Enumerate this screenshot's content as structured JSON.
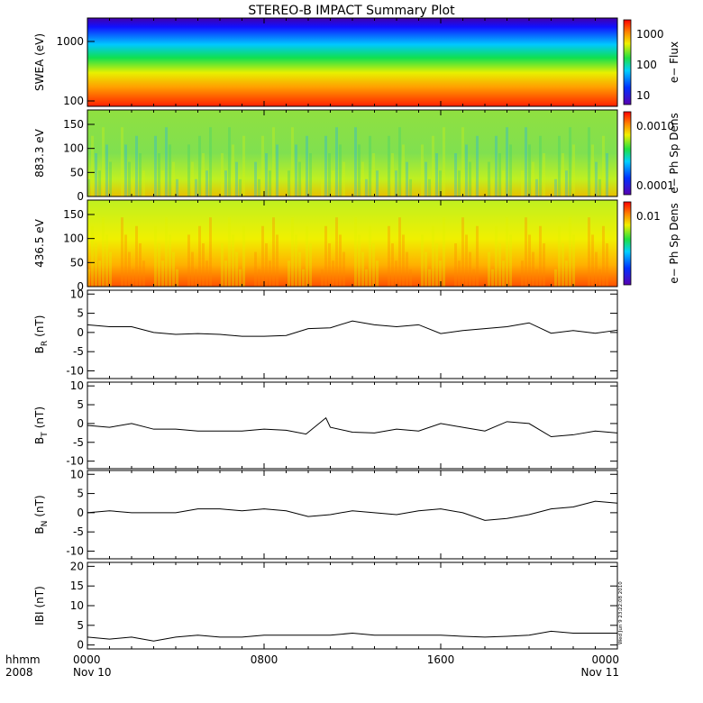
{
  "chart_data": {
    "title": "STEREO-B IMPACT Summary Plot",
    "x_axis": {
      "row1_label": "hhmm",
      "row2_label": "2008",
      "ticks": [
        {
          "hours": 0,
          "label": "0000",
          "sub": "Nov 10"
        },
        {
          "hours": 8,
          "label": "0800",
          "sub": ""
        },
        {
          "hours": 16,
          "label": "1600",
          "sub": ""
        },
        {
          "hours": 24,
          "label": "0000",
          "sub": "Nov 11"
        }
      ],
      "range_hours": [
        0,
        24
      ]
    },
    "side_stamp": "Wed Jun 9 23:22:08 2010",
    "panels": [
      {
        "type": "heatmap",
        "ylabel": "SWEA (eV)",
        "yscale": "log",
        "yticks": [
          "100",
          "1000"
        ],
        "colorbar": {
          "label": "e− Flux",
          "ticks": [
            "1000",
            "100",
            "10"
          ]
        },
        "description_values": {
          "energy_range_eV": [
            100,
            2000
          ]
        }
      },
      {
        "type": "heatmap",
        "ylabel": "883.3 eV",
        "yticks": [
          "0",
          "50",
          "100",
          "150"
        ],
        "ylim": [
          0,
          180
        ],
        "colorbar": {
          "label": "e− Ph Sp Dens",
          "ticks": [
            "0.0010",
            "0.0001"
          ]
        }
      },
      {
        "type": "heatmap",
        "ylabel": "436.5 eV",
        "yticks": [
          "0",
          "50",
          "100",
          "150"
        ],
        "ylim": [
          0,
          180
        ],
        "colorbar": {
          "label": "e− Ph Sp Dens",
          "ticks": [
            "0.01"
          ]
        }
      },
      {
        "type": "line",
        "ylabel": "B",
        "ylabel_sub": "R",
        "ylabel_unit": "(nT)",
        "ylim": [
          -12,
          11
        ],
        "yticks": [
          "-10",
          "-5",
          "0",
          "5",
          "10"
        ],
        "x": [
          0,
          1,
          2,
          3,
          4,
          5,
          6,
          7,
          8,
          9,
          10,
          11,
          12,
          13,
          14,
          15,
          16,
          17,
          18,
          19,
          20,
          21,
          22,
          23,
          24
        ],
        "y": [
          2,
          1.5,
          1.5,
          0,
          -0.5,
          -0.3,
          -0.5,
          -1,
          -1,
          -0.8,
          1,
          1.2,
          3,
          2,
          1.5,
          2,
          -0.3,
          0.5,
          1,
          1.5,
          2.5,
          -0.2,
          0.5,
          -0.2,
          0.6
        ]
      },
      {
        "type": "line",
        "ylabel": "B",
        "ylabel_sub": "T",
        "ylabel_unit": "(nT)",
        "ylim": [
          -12,
          11
        ],
        "yticks": [
          "-10",
          "-5",
          "0",
          "5",
          "10"
        ],
        "x": [
          0,
          1,
          2,
          3,
          4,
          5,
          6,
          7,
          8,
          9,
          9.9,
          10.8,
          11,
          12,
          13,
          14,
          15,
          16,
          17,
          18,
          19,
          20,
          21,
          22,
          23,
          24
        ],
        "y": [
          -0.5,
          -1,
          0,
          -1.5,
          -1.5,
          -2,
          -2,
          -2,
          -1.5,
          -1.8,
          -2.8,
          1.5,
          -1,
          -2.3,
          -2.5,
          -1.5,
          -2,
          0,
          -1,
          -2,
          0.5,
          0,
          -3.5,
          -3,
          -2,
          -2.5
        ]
      },
      {
        "type": "line",
        "ylabel": "B",
        "ylabel_sub": "N",
        "ylabel_unit": "(nT)",
        "ylim": [
          -12,
          11
        ],
        "yticks": [
          "-10",
          "-5",
          "0",
          "5",
          "10"
        ],
        "x": [
          0,
          1,
          2,
          3,
          4,
          5,
          6,
          7,
          8,
          9,
          10,
          11,
          12,
          13,
          14,
          15,
          16,
          17,
          18,
          19,
          20,
          21,
          22,
          23,
          24
        ],
        "y": [
          0,
          0.5,
          0,
          0,
          0,
          1,
          1,
          0.5,
          1,
          0.5,
          -1,
          -0.5,
          0.5,
          0,
          -0.5,
          0.5,
          1,
          0,
          -2,
          -1.5,
          -0.5,
          1,
          1.5,
          3,
          2.5
        ]
      },
      {
        "type": "line",
        "ylabel": "IBI",
        "ylabel_unit": "(nT)",
        "ylim": [
          -1,
          21
        ],
        "yticks": [
          "0",
          "5",
          "10",
          "15",
          "20"
        ],
        "x": [
          0,
          1,
          2,
          3,
          4,
          5,
          6,
          7,
          8,
          9,
          10,
          11,
          12,
          13,
          14,
          15,
          16,
          17,
          18,
          19,
          20,
          21,
          22,
          23,
          24
        ],
        "y": [
          2,
          1.5,
          2,
          1,
          2,
          2.5,
          2,
          2,
          2.5,
          2.5,
          2.5,
          2.5,
          3,
          2.5,
          2.5,
          2.5,
          2.5,
          2.2,
          2,
          2.2,
          2.5,
          3.5,
          3,
          3,
          3
        ]
      }
    ]
  }
}
